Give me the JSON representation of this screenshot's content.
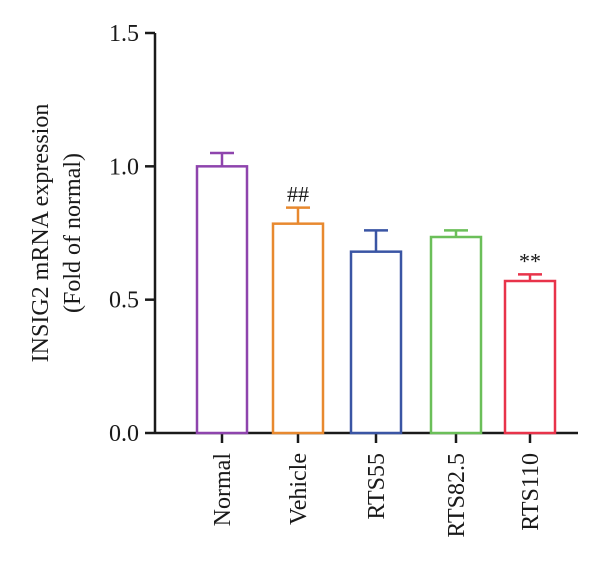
{
  "chart_data": {
    "type": "bar",
    "ylabel_line1": "INSIG2 mRNA expression",
    "ylabel_line2": "(Fold of normal)",
    "ylim": [
      0,
      1.5
    ],
    "yticks": [
      "0.0",
      "0.5",
      "1.0",
      "1.5"
    ],
    "ytick_values": [
      0,
      0.5,
      1.0,
      1.5
    ],
    "categories": [
      "Normal",
      "Vehicle",
      "RTS55",
      "RTS82.5",
      "RTS110"
    ],
    "values": [
      1.0,
      0.785,
      0.68,
      0.735,
      0.57
    ],
    "errors": [
      0.05,
      0.06,
      0.08,
      0.025,
      0.025
    ],
    "annotations": [
      "",
      "##",
      "",
      "",
      "**"
    ],
    "colors": [
      "#8e44ad",
      "#e8892f",
      "#3a55a4",
      "#6bbf59",
      "#e8334a"
    ],
    "bar_style": "hollow",
    "grid": false,
    "legend": "none"
  }
}
